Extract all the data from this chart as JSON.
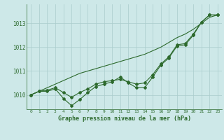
{
  "xlabel": "Graphe pression niveau de la mer (hPa)",
  "hours": [
    0,
    1,
    2,
    3,
    4,
    5,
    6,
    7,
    8,
    9,
    10,
    11,
    12,
    13,
    14,
    15,
    16,
    17,
    18,
    19,
    20,
    21,
    22,
    23
  ],
  "line_wavy": [
    1010.0,
    1010.15,
    1010.15,
    1010.25,
    1009.85,
    1009.55,
    1009.8,
    1010.1,
    1010.35,
    1010.45,
    1010.55,
    1010.75,
    1010.5,
    1010.3,
    1010.3,
    1010.75,
    1011.25,
    1011.55,
    1012.05,
    1012.1,
    1012.5,
    1013.05,
    1013.35,
    1013.35
  ],
  "line_smooth": [
    1010.0,
    1010.15,
    1010.2,
    1010.3,
    1010.1,
    1009.9,
    1010.1,
    1010.25,
    1010.45,
    1010.55,
    1010.6,
    1010.65,
    1010.55,
    1010.45,
    1010.5,
    1010.85,
    1011.3,
    1011.6,
    1012.1,
    1012.15,
    1012.55,
    1013.05,
    1013.35,
    1013.35
  ],
  "line_straight": [
    1010.0,
    1010.15,
    1010.3,
    1010.45,
    1010.6,
    1010.75,
    1010.9,
    1011.0,
    1011.1,
    1011.2,
    1011.3,
    1011.4,
    1011.5,
    1011.6,
    1011.7,
    1011.85,
    1012.0,
    1012.2,
    1012.4,
    1012.55,
    1012.75,
    1013.0,
    1013.25,
    1013.35
  ],
  "line_color": "#2d6a2d",
  "bg_color": "#cde8e8",
  "grid_color": "#aacccc",
  "ylim_min": 1009.4,
  "ylim_max": 1013.8,
  "yticks": [
    1010,
    1011,
    1012,
    1013
  ],
  "marker": "D",
  "marker_size": 2.0,
  "linewidth": 0.8
}
